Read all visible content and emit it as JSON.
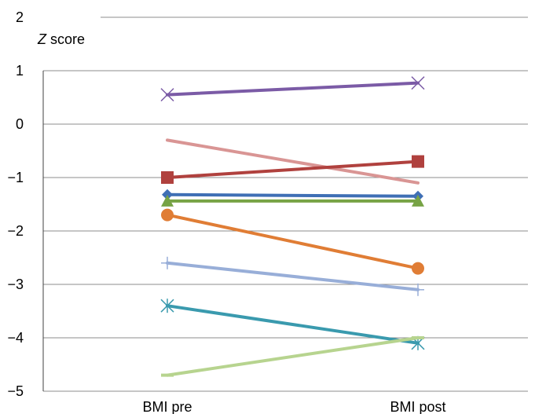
{
  "chart_data": {
    "type": "line",
    "categories": [
      "BMI pre",
      "BMI post"
    ],
    "ylabel_italic": "Z",
    "ylabel_rest": " score",
    "ylim": [
      -5,
      2
    ],
    "yticks": [
      {
        "value": 2,
        "label": "2"
      },
      {
        "value": 1,
        "label": "1"
      },
      {
        "value": 0,
        "label": "0"
      },
      {
        "value": -1,
        "label": "−1"
      },
      {
        "value": -2,
        "label": "−2"
      },
      {
        "value": -3,
        "label": "−3"
      },
      {
        "value": -4,
        "label": "−4"
      },
      {
        "value": -5,
        "label": "−5"
      }
    ],
    "grid": true,
    "series": [
      {
        "values": [
          0.55,
          0.77
        ],
        "color": "#7b5ba6",
        "marker": "x"
      },
      {
        "values": [
          -0.3,
          -1.1
        ],
        "color": "#d99594",
        "marker": "none"
      },
      {
        "values": [
          -1.0,
          -0.7
        ],
        "color": "#b0413e",
        "marker": "square"
      },
      {
        "values": [
          -1.32,
          -1.35
        ],
        "color": "#3f6fb5",
        "marker": "diamond"
      },
      {
        "values": [
          -1.44,
          -1.44
        ],
        "color": "#77a345",
        "marker": "triangle"
      },
      {
        "values": [
          -1.7,
          -2.7
        ],
        "color": "#e07d35",
        "marker": "circle"
      },
      {
        "values": [
          -2.6,
          -3.1
        ],
        "color": "#98aed8",
        "marker": "plus"
      },
      {
        "values": [
          -3.4,
          -4.1
        ],
        "color": "#3a9aae",
        "marker": "star"
      },
      {
        "values": [
          -4.7,
          -4.0
        ],
        "color": "#b7d48f",
        "marker": "dash"
      }
    ]
  }
}
